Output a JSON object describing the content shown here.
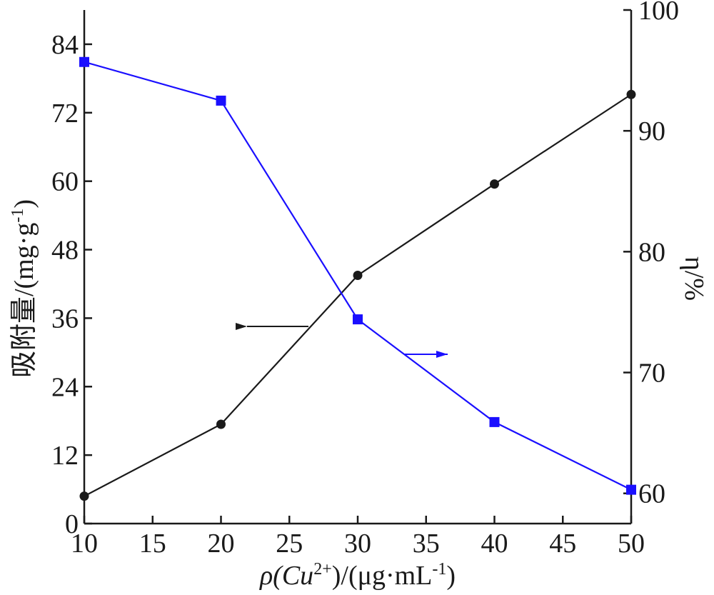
{
  "chart_data": {
    "type": "line",
    "xlabel": {
      "pre": "ρ(Cu",
      "sup1": "2+",
      "mid": ")/(μg·mL",
      "sup2": "-1",
      "post": ")"
    },
    "ylabel_left": {
      "pre": "吸附量/(mg·g",
      "sup": "-1",
      "post": ")"
    },
    "ylabel_right": "η/%",
    "x_ticks": [
      10,
      15,
      20,
      25,
      30,
      35,
      40,
      45,
      50
    ],
    "x_tick_labels": [
      "10",
      "15",
      "20",
      "25",
      "30",
      "35",
      "40",
      "45",
      "50"
    ],
    "xlim": [
      10,
      50
    ],
    "y_left_ticks": [
      0,
      12,
      24,
      36,
      48,
      60,
      72,
      84
    ],
    "y_left_tick_labels": [
      "0",
      "12",
      "24",
      "36",
      "48",
      "60",
      "72",
      "84"
    ],
    "y_left_lim": [
      0,
      90
    ],
    "y_right_ticks": [
      60,
      70,
      80,
      90,
      100
    ],
    "y_right_tick_labels": [
      "60",
      "70",
      "80",
      "90",
      "100"
    ],
    "y_right_lim": [
      57.5,
      100
    ],
    "series": [
      {
        "axis": "left",
        "color": "#1a1a1a",
        "marker": "circle",
        "x": [
          10,
          20,
          30,
          40,
          50
        ],
        "values": [
          4.8,
          17.4,
          43.5,
          59.5,
          75.2
        ]
      },
      {
        "axis": "right",
        "color": "#1a0fff",
        "marker": "square",
        "x": [
          10,
          20,
          30,
          40,
          50
        ],
        "values": [
          95.7,
          92.5,
          74.4,
          65.9,
          60.3
        ]
      }
    ],
    "annotations": [
      {
        "type": "arrow",
        "direction": "left",
        "color": "#1a1a1a",
        "points_to": "left-axis"
      },
      {
        "type": "arrow",
        "direction": "right",
        "color": "#1a0fff",
        "points_to": "right-axis"
      }
    ],
    "grid": false,
    "legend": "none"
  }
}
